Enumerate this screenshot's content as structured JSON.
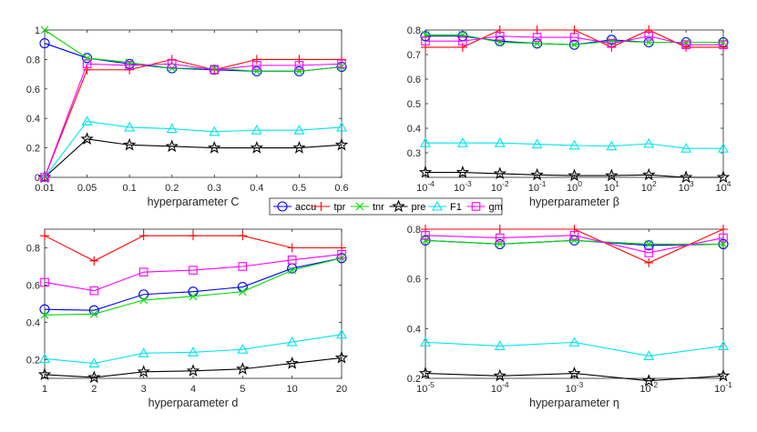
{
  "figure": {
    "legend": {
      "entries": [
        {
          "name": "accu",
          "color": "#0000ff",
          "marker": "circle"
        },
        {
          "name": "tpr",
          "color": "#ff0000",
          "marker": "plus"
        },
        {
          "name": "tnr",
          "color": "#00dd00",
          "marker": "cross"
        },
        {
          "name": "pre",
          "color": "#000000",
          "marker": "star"
        },
        {
          "name": "F1",
          "color": "#00e5ee",
          "marker": "triangle"
        },
        {
          "name": "gm",
          "color": "#ff00ff",
          "marker": "square"
        }
      ]
    }
  },
  "chart_data": [
    {
      "type": "line",
      "id": "C",
      "xlabel": "hyperparameter C",
      "categories": [
        "0.01",
        "0.05",
        "0.1",
        "0.2",
        "0.3",
        "0.4",
        "0.5",
        "0.6"
      ],
      "ylim": [
        0,
        1
      ],
      "yticks": [
        "0",
        "0.2",
        "0.4",
        "0.6",
        "0.8",
        "1"
      ],
      "yticks_values": [
        0,
        0.2,
        0.4,
        0.6,
        0.8,
        1
      ],
      "series": [
        {
          "name": "accu",
          "values": [
            0.91,
            0.81,
            0.77,
            0.74,
            0.73,
            0.72,
            0.72,
            0.75
          ]
        },
        {
          "name": "tpr",
          "values": [
            0.0,
            0.73,
            0.73,
            0.8,
            0.73,
            0.8,
            0.8,
            0.8
          ]
        },
        {
          "name": "tnr",
          "values": [
            1.0,
            0.81,
            0.78,
            0.74,
            0.74,
            0.72,
            0.72,
            0.75
          ]
        },
        {
          "name": "pre",
          "values": [
            0.0,
            0.26,
            0.22,
            0.21,
            0.2,
            0.2,
            0.2,
            0.22
          ]
        },
        {
          "name": "F1",
          "values": [
            0.0,
            0.38,
            0.34,
            0.33,
            0.31,
            0.32,
            0.32,
            0.34
          ]
        },
        {
          "name": "gm",
          "values": [
            0.0,
            0.77,
            0.76,
            0.77,
            0.73,
            0.76,
            0.76,
            0.77
          ]
        }
      ]
    },
    {
      "type": "line",
      "id": "beta",
      "xlabel": "hyperparameter β",
      "categories": [
        "10^-4",
        "10^-3",
        "10^-2",
        "10^-1",
        "10^0",
        "10^1",
        "10^2",
        "10^3",
        "10^4"
      ],
      "ylim": [
        0.2,
        0.8
      ],
      "yticks": [
        "0.3",
        "0.4",
        "0.5",
        "0.6",
        "0.7",
        "0.8"
      ],
      "yticks_values": [
        0.3,
        0.4,
        0.5,
        0.6,
        0.7,
        0.8
      ],
      "series": [
        {
          "name": "accu",
          "values": [
            0.775,
            0.775,
            0.755,
            0.745,
            0.74,
            0.76,
            0.75,
            0.75,
            0.75
          ]
        },
        {
          "name": "tpr",
          "values": [
            0.73,
            0.73,
            0.8,
            0.8,
            0.8,
            0.73,
            0.8,
            0.73,
            0.73
          ]
        },
        {
          "name": "tnr",
          "values": [
            0.78,
            0.78,
            0.75,
            0.745,
            0.74,
            0.755,
            0.75,
            0.75,
            0.75
          ]
        },
        {
          "name": "pre",
          "values": [
            0.22,
            0.22,
            0.215,
            0.21,
            0.207,
            0.207,
            0.21,
            0.2,
            0.2
          ]
        },
        {
          "name": "F1",
          "values": [
            0.34,
            0.34,
            0.34,
            0.335,
            0.33,
            0.327,
            0.337,
            0.318,
            0.318
          ]
        },
        {
          "name": "gm",
          "values": [
            0.755,
            0.755,
            0.775,
            0.77,
            0.77,
            0.745,
            0.775,
            0.74,
            0.74
          ]
        }
      ]
    },
    {
      "type": "line",
      "id": "d",
      "xlabel": "hyperparameter d",
      "categories": [
        "1",
        "2",
        "3",
        "4",
        "5",
        "10",
        "20"
      ],
      "ylim": [
        0.1,
        0.9
      ],
      "yticks": [
        "0.2",
        "0.4",
        "0.6",
        "0.8"
      ],
      "yticks_values": [
        0.2,
        0.4,
        0.6,
        0.8
      ],
      "series": [
        {
          "name": "accu",
          "values": [
            0.47,
            0.465,
            0.55,
            0.565,
            0.59,
            0.69,
            0.745
          ]
        },
        {
          "name": "tpr",
          "values": [
            0.865,
            0.73,
            0.865,
            0.865,
            0.865,
            0.8,
            0.8
          ]
        },
        {
          "name": "tnr",
          "values": [
            0.44,
            0.445,
            0.52,
            0.54,
            0.565,
            0.68,
            0.745
          ]
        },
        {
          "name": "pre",
          "values": [
            0.12,
            0.105,
            0.135,
            0.14,
            0.15,
            0.18,
            0.21
          ]
        },
        {
          "name": "F1",
          "values": [
            0.205,
            0.18,
            0.235,
            0.24,
            0.255,
            0.295,
            0.335
          ]
        },
        {
          "name": "gm",
          "values": [
            0.615,
            0.57,
            0.67,
            0.68,
            0.7,
            0.735,
            0.765
          ]
        }
      ]
    },
    {
      "type": "line",
      "id": "eta",
      "xlabel": "hyperparameter η",
      "categories": [
        "10^-5",
        "10^-4",
        "10^-3",
        "10^-2",
        "10^-1"
      ],
      "ylim": [
        0.2,
        0.8
      ],
      "yticks": [
        "0.2",
        "0.4",
        "0.6",
        "0.8"
      ],
      "yticks_values": [
        0.2,
        0.4,
        0.6,
        0.8
      ],
      "series": [
        {
          "name": "accu",
          "values": [
            0.755,
            0.74,
            0.755,
            0.735,
            0.74
          ]
        },
        {
          "name": "tpr",
          "values": [
            0.8,
            0.8,
            0.8,
            0.665,
            0.8
          ]
        },
        {
          "name": "tnr",
          "values": [
            0.755,
            0.74,
            0.755,
            0.74,
            0.74
          ]
        },
        {
          "name": "pre",
          "values": [
            0.22,
            0.21,
            0.22,
            0.19,
            0.21
          ]
        },
        {
          "name": "F1",
          "values": [
            0.345,
            0.33,
            0.345,
            0.29,
            0.33
          ]
        },
        {
          "name": "gm",
          "values": [
            0.775,
            0.765,
            0.775,
            0.705,
            0.765
          ]
        }
      ]
    }
  ]
}
